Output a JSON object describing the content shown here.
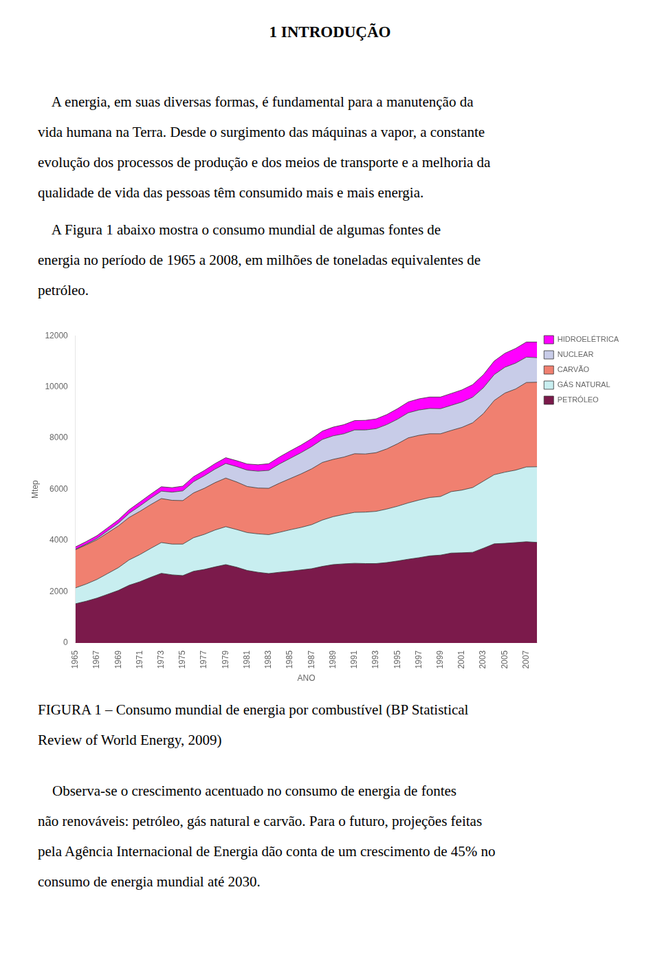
{
  "chart_data": {
    "type": "area",
    "title": "1 INTRODUÇÃO",
    "text_above": [
      [
        "    A energia, em suas diversas formas, é fundamental para a manutenção da",
        "vida humana na Terra. Desde o surgimento das máquinas a vapor, a constante",
        "evolução dos processos de produção e dos meios de transporte e a melhoria da",
        "qualidade de vida das pessoas têm consumido mais e mais energia."
      ],
      [
        "    A Figura 1 abaixo mostra o consumo mundial de algumas fontes de",
        "energia no período de 1965 a 2008, em milhões de toneladas equivalentes de",
        "petróleo."
      ]
    ],
    "caption": [
      "FIGURA 1 – Consumo mundial de energia por combustível (BP Statistical",
      "Review of World Energy, 2009)"
    ],
    "text_below": [
      "    Observa-se o crescimento acentuado no consumo de energia de fontes",
      "não renováveis: petróleo, gás natural e carvão. Para o futuro, projeções feitas",
      "pela Agência Internacional de Energia dão conta de um crescimento de 45% no",
      "consumo de energia mundial até 2030."
    ],
    "xlabel": "ANO",
    "ylabel": "Mtep",
    "x": [
      1965,
      1966,
      1967,
      1968,
      1969,
      1970,
      1971,
      1972,
      1973,
      1974,
      1975,
      1976,
      1977,
      1978,
      1979,
      1980,
      1981,
      1982,
      1983,
      1984,
      1985,
      1986,
      1987,
      1988,
      1989,
      1990,
      1991,
      1992,
      1993,
      1994,
      1995,
      1996,
      1997,
      1998,
      1999,
      2000,
      2001,
      2002,
      2003,
      2004,
      2005,
      2006,
      2007,
      2008
    ],
    "series": [
      {
        "name": "PETRÓLEO",
        "color": "#7b1a4b",
        "values": [
          1530,
          1630,
          1750,
          1900,
          2050,
          2253,
          2390,
          2560,
          2720,
          2660,
          2630,
          2800,
          2870,
          2970,
          3060,
          2960,
          2830,
          2760,
          2710,
          2760,
          2800,
          2850,
          2900,
          2990,
          3060,
          3090,
          3110,
          3100,
          3100,
          3140,
          3200,
          3270,
          3330,
          3400,
          3430,
          3510,
          3520,
          3540,
          3700,
          3870,
          3890,
          3920,
          3952,
          3927
        ]
      },
      {
        "name": "GÁS NATURAL",
        "color": "#c8eef0",
        "values": [
          620,
          670,
          730,
          810,
          890,
          990,
          1060,
          1130,
          1200,
          1200,
          1230,
          1310,
          1370,
          1440,
          1480,
          1470,
          1480,
          1500,
          1520,
          1560,
          1620,
          1660,
          1720,
          1810,
          1870,
          1930,
          1990,
          2010,
          2040,
          2090,
          2140,
          2200,
          2250,
          2280,
          2290,
          2400,
          2450,
          2530,
          2620,
          2700,
          2780,
          2830,
          2921,
          2954
        ]
      },
      {
        "name": "CARVÃO",
        "color": "#f08070",
        "values": [
          1490,
          1530,
          1550,
          1590,
          1630,
          1660,
          1690,
          1710,
          1720,
          1710,
          1700,
          1750,
          1800,
          1850,
          1900,
          1860,
          1800,
          1790,
          1810,
          1920,
          2000,
          2090,
          2180,
          2250,
          2240,
          2240,
          2290,
          2270,
          2290,
          2350,
          2440,
          2540,
          2530,
          2490,
          2450,
          2390,
          2450,
          2530,
          2640,
          2900,
          3090,
          3170,
          3301,
          3303
        ]
      },
      {
        "name": "NUCLEAR",
        "color": "#c8cce8",
        "values": [
          20,
          30,
          50,
          80,
          110,
          160,
          210,
          250,
          290,
          320,
          380,
          440,
          490,
          530,
          570,
          600,
          640,
          660,
          700,
          750,
          790,
          830,
          870,
          900,
          920,
          910,
          930,
          940,
          940,
          950,
          960,
          980,
          990,
          990,
          980,
          980,
          990,
          1000,
          1010,
          1010,
          1010,
          1010,
          990,
          960
        ]
      },
      {
        "name": "HIDROELÉTRICA",
        "color": "#ff00ff",
        "values": [
          90,
          100,
          110,
          120,
          130,
          140,
          155,
          160,
          170,
          175,
          185,
          195,
          205,
          215,
          225,
          230,
          240,
          250,
          260,
          275,
          290,
          295,
          310,
          325,
          340,
          355,
          365,
          375,
          380,
          390,
          410,
          425,
          435,
          445,
          455,
          465,
          475,
          490,
          510,
          530,
          545,
          575,
          590,
          610
        ]
      }
    ],
    "xlim": [
      1965,
      2008
    ],
    "xticks": [
      1965,
      1967,
      1969,
      1971,
      1973,
      1975,
      1977,
      1979,
      1981,
      1983,
      1985,
      1987,
      1989,
      1991,
      1993,
      1995,
      1997,
      1999,
      2001,
      2003,
      2005,
      2007
    ],
    "ylim": [
      0,
      12000
    ],
    "yticks": [
      0,
      2000,
      4000,
      6000,
      8000,
      10000,
      12000
    ],
    "stacked": true,
    "grid": false,
    "legend": "right"
  }
}
